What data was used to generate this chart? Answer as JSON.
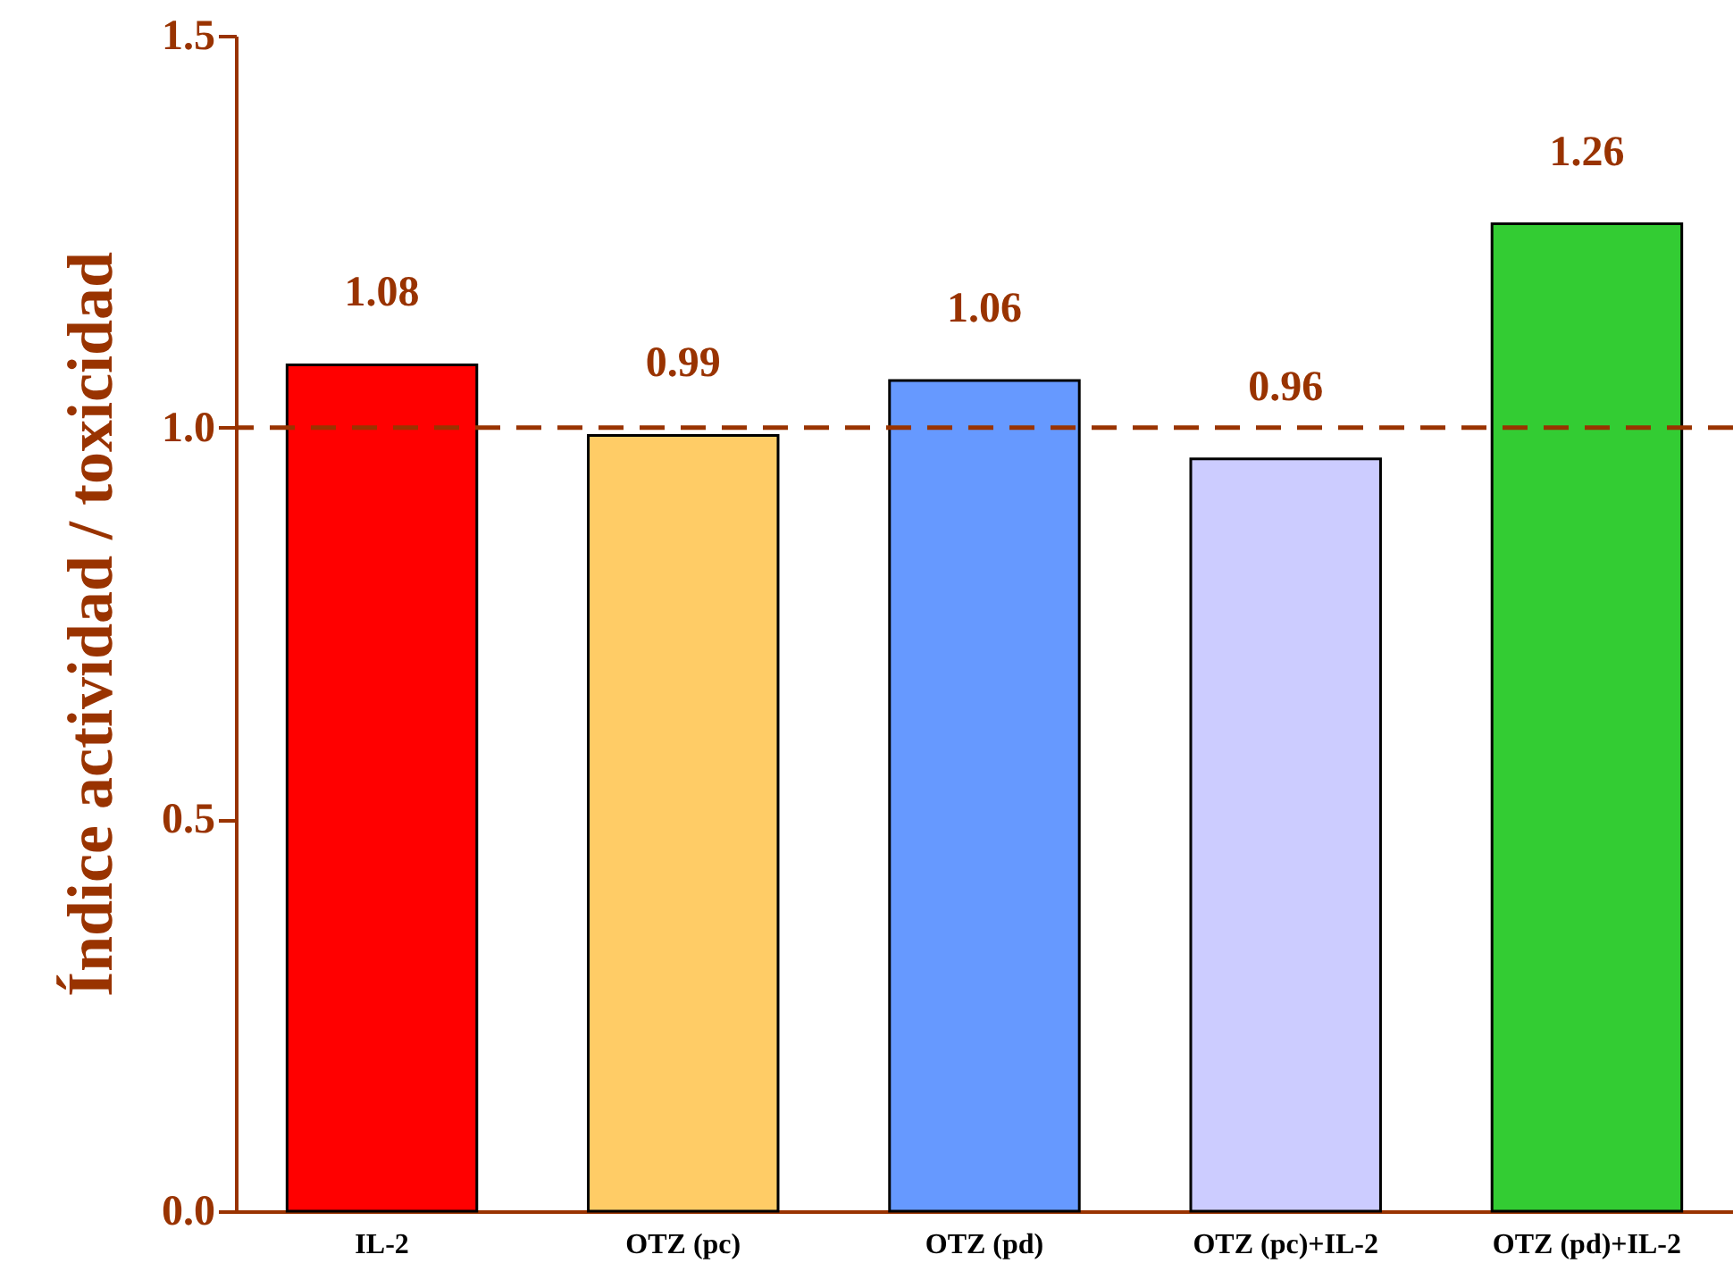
{
  "chart_data": {
    "type": "bar",
    "ylabel": "Índice actividad / toxicidad",
    "categories": [
      "IL-2",
      "OTZ (pc)",
      "OTZ (pd)",
      "OTZ (pc)+IL-2",
      "OTZ (pd)+IL-2"
    ],
    "values": [
      1.08,
      0.99,
      1.06,
      0.96,
      1.26
    ],
    "colors": [
      "#ff0000",
      "#ffcc66",
      "#6699ff",
      "#ccccff",
      "#33cc33"
    ],
    "data_labels": true,
    "ylim": [
      0,
      1.5
    ],
    "yticks": [
      {
        "value": 0,
        "label": "0.0"
      },
      {
        "value": 0.5,
        "label": "0.5"
      },
      {
        "value": 1,
        "label": "1.0"
      },
      {
        "value": 1.5,
        "label": "1.5"
      }
    ],
    "ref_lines": [
      {
        "axis": "y",
        "value": 1,
        "color": "#993300",
        "line_style": "dashed"
      }
    ],
    "grid": false
  }
}
